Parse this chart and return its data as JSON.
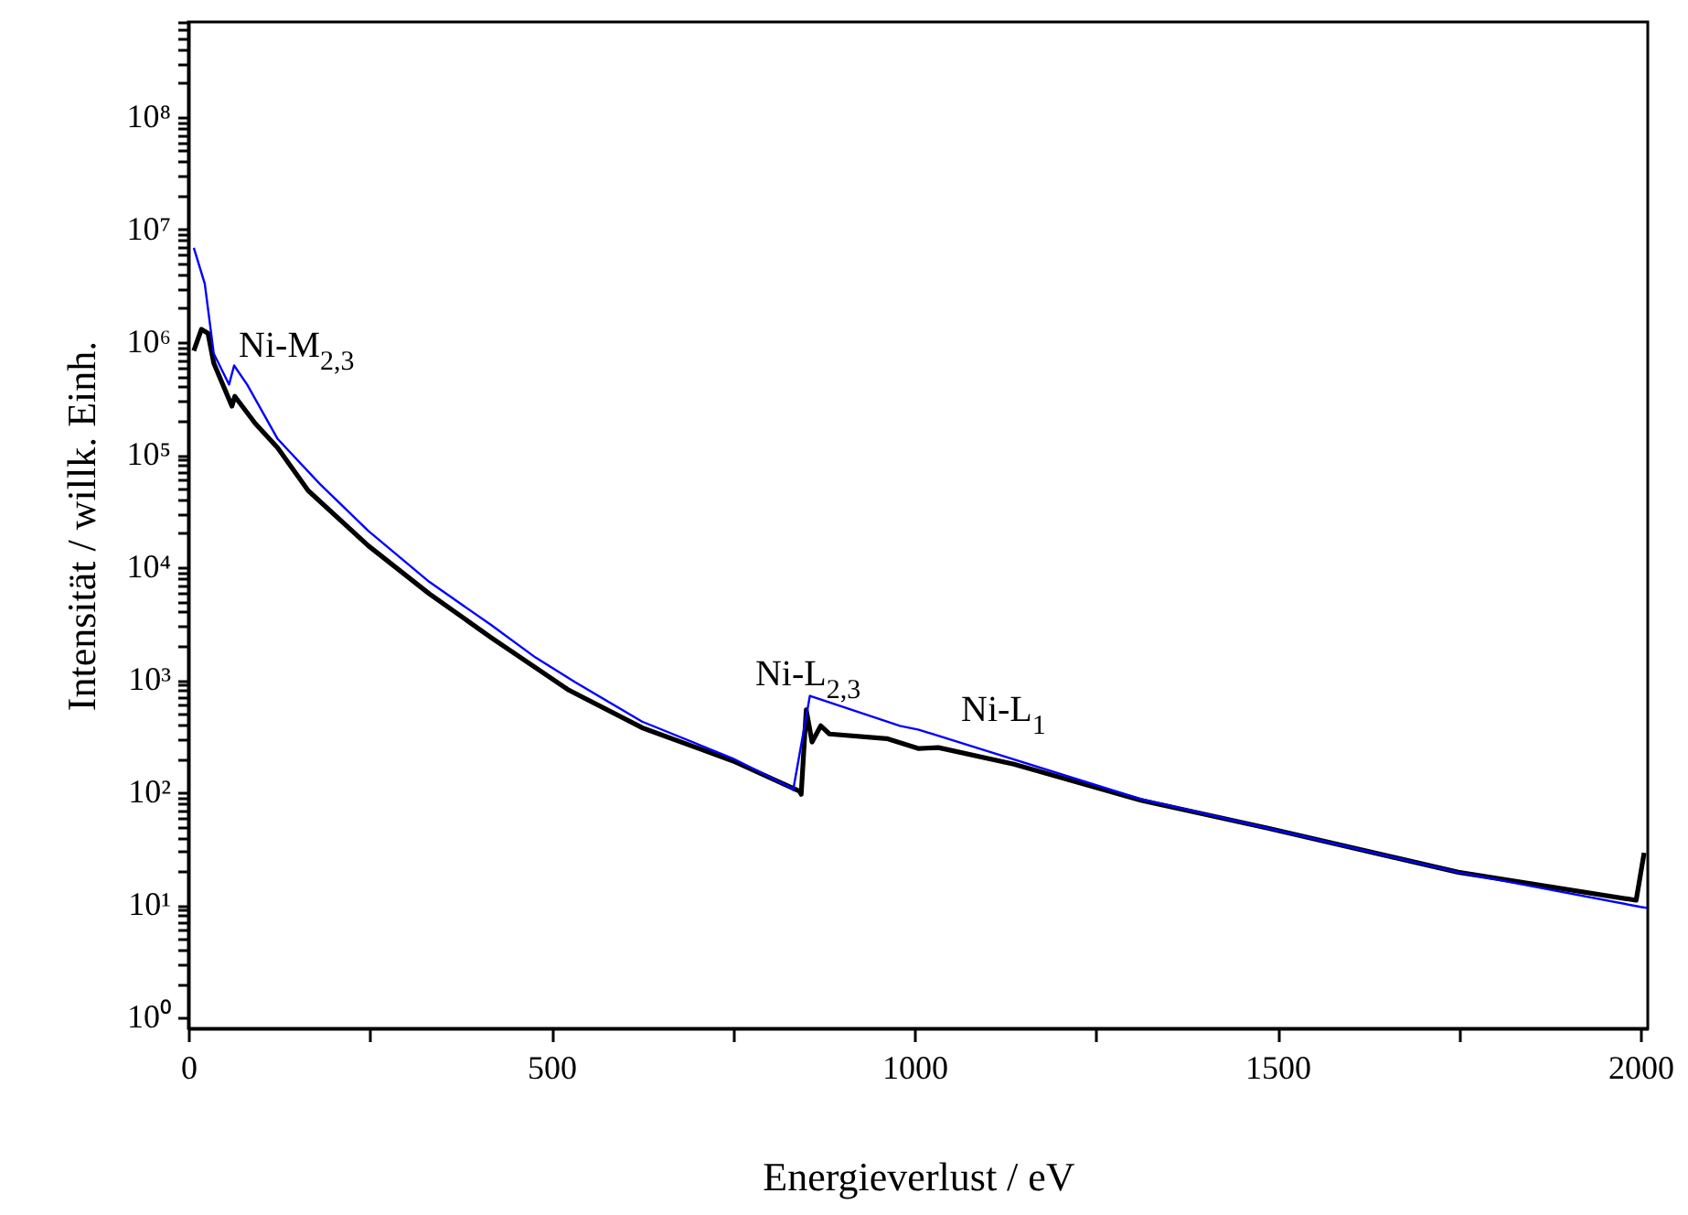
{
  "chart_data": {
    "type": "line",
    "xlabel": "Energieverlust / eV",
    "ylabel": "Intensität / willk. Einh.",
    "log": "y",
    "grid": false,
    "xlim": [
      0,
      2010
    ],
    "ylim": [
      0.8,
      700000000
    ],
    "xticks": [
      0,
      {
        "value": 250,
        "label": null
      },
      500,
      {
        "value": 750,
        "label": null
      },
      1000,
      {
        "value": 1250,
        "label": null
      },
      1500,
      {
        "value": 1750,
        "label": null
      },
      2000
    ],
    "yticks": [
      {
        "value": 1,
        "label": "10⁰"
      },
      {
        "value": 2,
        "label": null
      },
      {
        "value": 3,
        "label": null
      },
      {
        "value": 4,
        "label": null
      },
      {
        "value": 5,
        "label": null
      },
      {
        "value": 6,
        "label": null
      },
      {
        "value": 7,
        "label": null
      },
      {
        "value": 8,
        "label": null
      },
      {
        "value": 9,
        "label": null
      },
      {
        "value": 10,
        "label": "10¹"
      },
      {
        "value": 20,
        "label": null
      },
      {
        "value": 30,
        "label": null
      },
      {
        "value": 40,
        "label": null
      },
      {
        "value": 50,
        "label": null
      },
      {
        "value": 60,
        "label": null
      },
      {
        "value": 70,
        "label": null
      },
      {
        "value": 80,
        "label": null
      },
      {
        "value": 90,
        "label": null
      },
      {
        "value": 100,
        "label": "10²"
      },
      {
        "value": 200,
        "label": null
      },
      {
        "value": 300,
        "label": null
      },
      {
        "value": 400,
        "label": null
      },
      {
        "value": 500,
        "label": null
      },
      {
        "value": 600,
        "label": null
      },
      {
        "value": 700,
        "label": null
      },
      {
        "value": 800,
        "label": null
      },
      {
        "value": 900,
        "label": null
      },
      {
        "value": 1000,
        "label": "10³"
      },
      {
        "value": 2000,
        "label": null
      },
      {
        "value": 3000,
        "label": null
      },
      {
        "value": 4000,
        "label": null
      },
      {
        "value": 5000,
        "label": null
      },
      {
        "value": 6000,
        "label": null
      },
      {
        "value": 7000,
        "label": null
      },
      {
        "value": 8000,
        "label": null
      },
      {
        "value": 9000,
        "label": null
      },
      {
        "value": 10000,
        "label": "10⁴"
      },
      {
        "value": 20000,
        "label": null
      },
      {
        "value": 30000,
        "label": null
      },
      {
        "value": 40000,
        "label": null
      },
      {
        "value": 50000,
        "label": null
      },
      {
        "value": 60000,
        "label": null
      },
      {
        "value": 70000,
        "label": null
      },
      {
        "value": 80000,
        "label": null
      },
      {
        "value": 90000,
        "label": null
      },
      {
        "value": 100000,
        "label": "10⁵"
      },
      {
        "value": 200000,
        "label": null
      },
      {
        "value": 300000,
        "label": null
      },
      {
        "value": 400000,
        "label": null
      },
      {
        "value": 500000,
        "label": null
      },
      {
        "value": 600000,
        "label": null
      },
      {
        "value": 700000,
        "label": null
      },
      {
        "value": 800000,
        "label": null
      },
      {
        "value": 900000,
        "label": null
      },
      {
        "value": 1000000,
        "label": "10⁶"
      },
      {
        "value": 2000000,
        "label": null
      },
      {
        "value": 3000000,
        "label": null
      },
      {
        "value": 4000000,
        "label": null
      },
      {
        "value": 5000000,
        "label": null
      },
      {
        "value": 6000000,
        "label": null
      },
      {
        "value": 7000000,
        "label": null
      },
      {
        "value": 8000000,
        "label": null
      },
      {
        "value": 9000000,
        "label": null
      },
      {
        "value": 10000000,
        "label": "10⁷"
      },
      {
        "value": 20000000,
        "label": null
      },
      {
        "value": 30000000,
        "label": null
      },
      {
        "value": 40000000,
        "label": null
      },
      {
        "value": 50000000,
        "label": null
      },
      {
        "value": 60000000,
        "label": null
      },
      {
        "value": 70000000,
        "label": null
      },
      {
        "value": 80000000,
        "label": null
      },
      {
        "value": 90000000,
        "label": null
      },
      {
        "value": 100000000,
        "label": "10⁸"
      },
      {
        "value": 200000000,
        "label": null
      },
      {
        "value": 300000000,
        "label": null
      },
      {
        "value": 400000000,
        "label": null
      },
      {
        "value": 500000000,
        "label": null
      },
      {
        "value": 600000000,
        "label": null
      },
      {
        "value": 700000000,
        "label": null
      }
    ],
    "series": [
      {
        "color": "#000000",
        "x": [
          7.5,
          18,
          27,
          35,
          60,
          64,
          92,
          123,
          165,
          248,
          332,
          416,
          524,
          625,
          750,
          842,
          844,
          851,
          859,
          871,
          883,
          962,
          1006,
          1033,
          1137,
          1312,
          1487,
          1749,
          1994,
          2005
        ],
        "values": [
          840000,
          1300000,
          1200000,
          650000,
          270000,
          330000,
          190000,
          115000,
          48000,
          15500,
          5800,
          2400,
          810,
          375,
          190,
          102,
          96,
          540,
          280,
          390,
          330,
          300,
          245,
          250,
          178,
          85,
          48,
          19.5,
          11,
          29
        ]
      },
      {
        "color": "#0000ff",
        "x": [
          7.5,
          22.6,
          35,
          56,
          63,
          81,
          123,
          181,
          248,
          332,
          416,
          478,
          533,
          625,
          750,
          832,
          833,
          856,
          980,
          1006,
          1094,
          1312,
          1487,
          1749,
          2000,
          2009
        ],
        "values": [
          6900000,
          3300000,
          790000,
          420000,
          620000,
          420000,
          138000,
          55000,
          21000,
          7400,
          3100,
          1580,
          950,
          425,
          200,
          108,
          105,
          720,
          390,
          360,
          240,
          87,
          48,
          19.5,
          9.6,
          9.4
        ]
      }
    ],
    "annotations": [
      {
        "text": "Ni-M$_{2,3}$",
        "x": 63,
        "y": 620000
      },
      {
        "text": "Ni-L$_{2,3}$",
        "x": 856,
        "y": 720
      },
      {
        "text": "Ni-L$_{1}$",
        "x": 1006,
        "y": 360
      }
    ]
  }
}
